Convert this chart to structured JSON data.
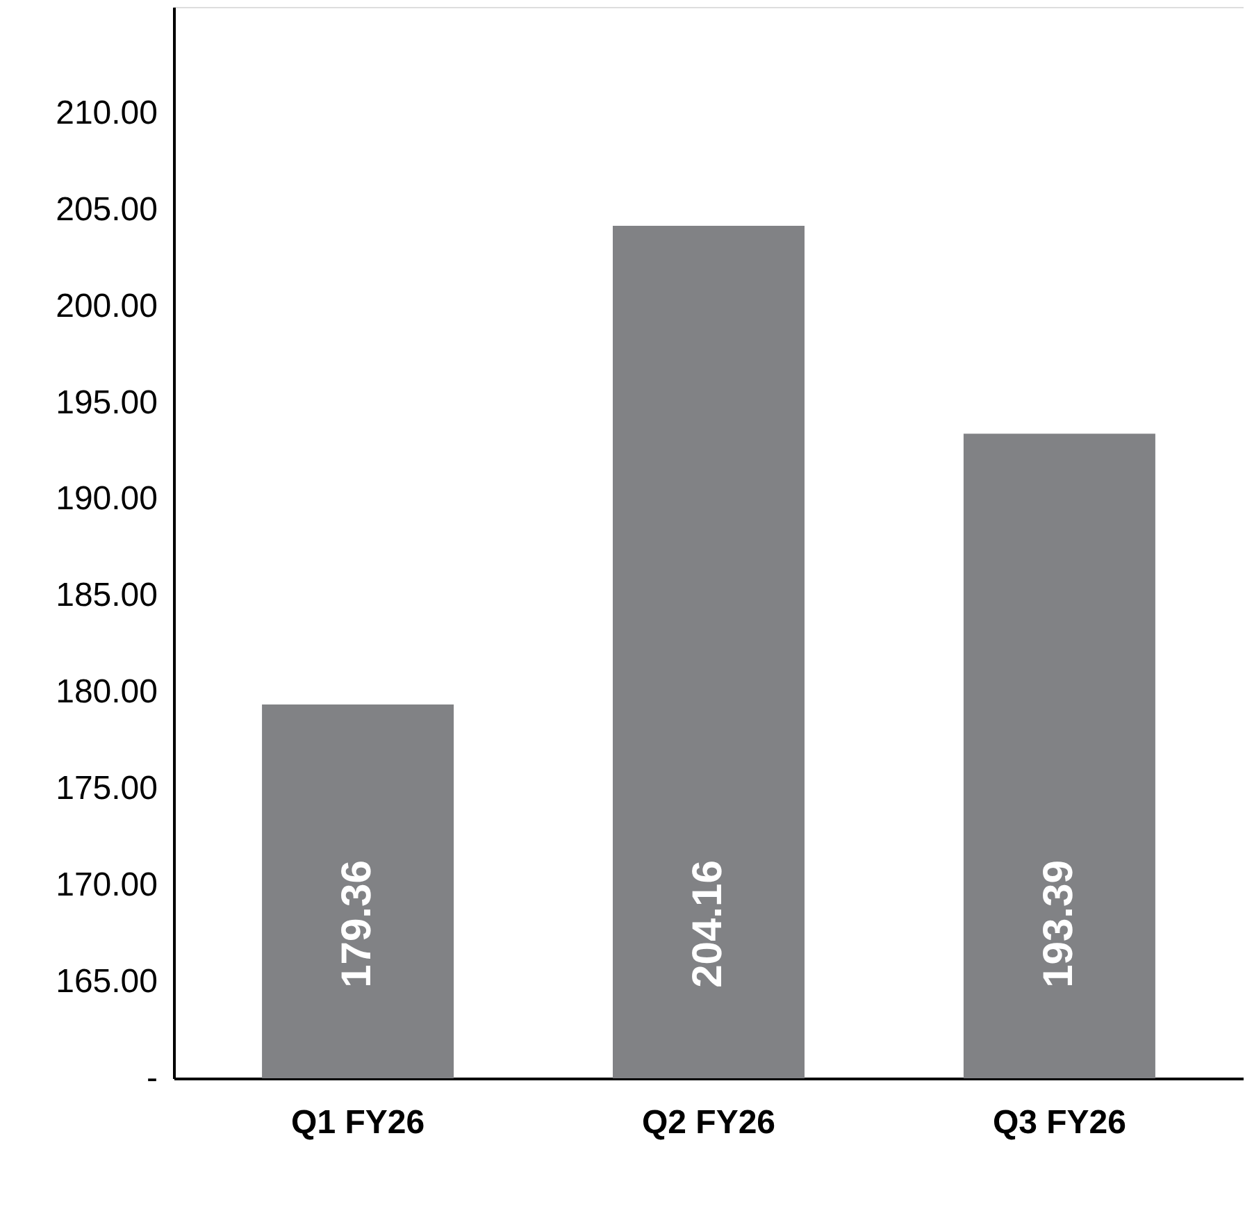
{
  "chart_data": {
    "type": "bar",
    "categories": [
      "Q1 FY26",
      "Q2 FY26",
      "Q3 FY26"
    ],
    "values": [
      179.36,
      204.16,
      193.39
    ],
    "color": "#818285",
    "ylim": [
      160,
      215.5
    ],
    "yticks": [
      {
        "value": 160,
        "label": "-"
      },
      {
        "value": 165,
        "label": "165.00"
      },
      {
        "value": 170,
        "label": "170.00"
      },
      {
        "value": 175,
        "label": "175.00"
      },
      {
        "value": 180,
        "label": "180.00"
      },
      {
        "value": 185,
        "label": "185.00"
      },
      {
        "value": 190,
        "label": "190.00"
      },
      {
        "value": 195,
        "label": "195.00"
      },
      {
        "value": 200,
        "label": "200.00"
      },
      {
        "value": 205,
        "label": "205.00"
      },
      {
        "value": 210,
        "label": "210.00"
      }
    ],
    "data_labels": true,
    "grid": false
  }
}
